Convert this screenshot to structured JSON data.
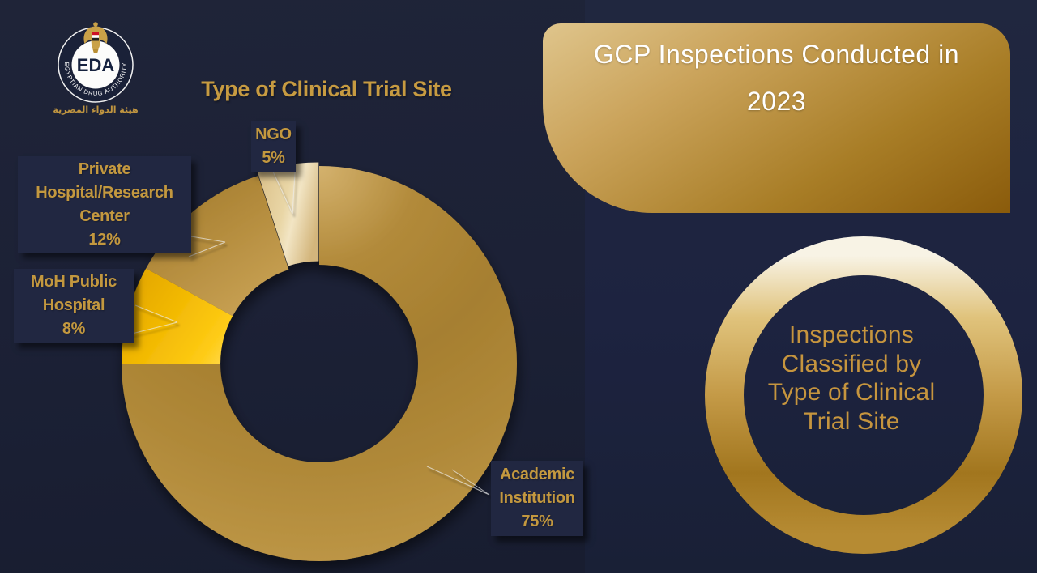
{
  "logo": {
    "acronym": "EDA",
    "ring_text": "EGYPTIAN DRUG AUTHORITY",
    "arabic_name": "هيئة الدواء المصرية"
  },
  "chart_title": "Type of Clinical Trial Site",
  "banner": {
    "line1": "GCP Inspections Conducted in",
    "line2": "2023"
  },
  "ring_card": {
    "lines": [
      "Inspections",
      "Classified by",
      "Type of Clinical",
      "Trial Site"
    ]
  },
  "chart_data": {
    "type": "pie",
    "subtype": "donut",
    "title": "Type of Clinical Trial Site",
    "unit": "percent",
    "categories": [
      "Academic Institution",
      "MoH Public Hospital",
      "Private Hospital/Research Center",
      "NGO"
    ],
    "values": [
      75,
      8,
      12,
      5
    ],
    "colors": [
      "#b28a3c",
      "#fccb05",
      "#b08738",
      "#eedcb0"
    ],
    "start_angle_deg": 0,
    "direction": "clockwise",
    "labels": [
      {
        "lines": [
          "Academic",
          "Institution",
          "75%"
        ]
      },
      {
        "lines": [
          "MoH Public",
          "Hospital",
          "8%"
        ]
      },
      {
        "lines": [
          "Private",
          "Hospital/Research",
          "Center",
          "12%"
        ]
      },
      {
        "lines": [
          "NGO",
          "5%"
        ]
      }
    ]
  }
}
